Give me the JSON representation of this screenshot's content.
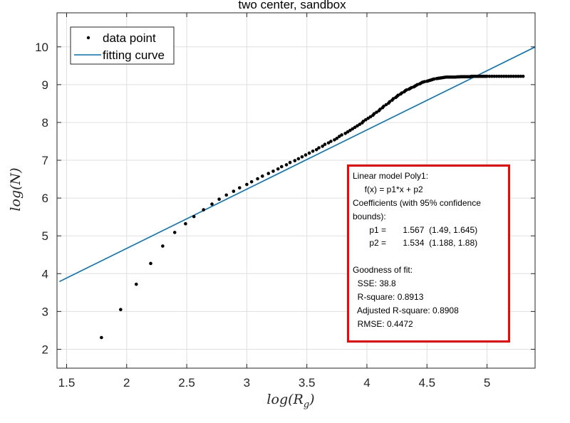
{
  "chart_data": {
    "type": "scatter",
    "title": "two center, sandbox",
    "xlabel": "log(R_g)",
    "ylabel": "log(N)",
    "xlim": [
      1.42,
      5.4
    ],
    "ylim": [
      1.5,
      10.9
    ],
    "xticks": [
      1.5,
      2,
      2.5,
      3,
      3.5,
      4,
      4.5,
      5
    ],
    "yticks": [
      2,
      3,
      4,
      5,
      6,
      7,
      8,
      9,
      10
    ],
    "grid": true,
    "legend_position": "top-left",
    "series": [
      {
        "name": "data point",
        "kind": "scatter",
        "color": "#000000",
        "x": [
          1.79,
          1.95,
          2.08,
          2.2,
          2.3,
          2.4,
          2.49,
          2.56,
          2.64,
          2.71,
          2.77,
          2.83,
          2.89,
          2.94,
          3.0,
          3.04,
          3.09,
          3.13,
          3.18,
          3.22,
          3.26,
          3.29,
          3.33,
          3.36,
          3.4,
          3.43,
          3.46,
          3.49,
          3.52,
          3.55,
          3.58,
          3.6,
          3.63,
          3.65,
          3.68,
          3.7,
          3.73,
          3.75,
          3.77,
          3.79,
          3.82,
          3.84,
          3.86,
          3.88,
          3.9,
          3.92,
          3.94,
          3.96,
          3.97,
          3.99,
          4.01,
          4.03,
          4.05,
          4.06,
          4.08,
          4.1,
          4.11,
          4.13,
          4.14,
          4.16,
          4.18,
          4.19,
          4.21,
          4.22,
          4.24,
          4.25,
          4.26,
          4.28,
          4.29,
          4.31,
          4.32,
          4.33,
          4.35,
          4.36,
          4.37,
          4.39,
          4.4,
          4.41,
          4.42,
          4.44,
          4.45,
          4.46,
          4.47,
          4.48,
          4.5,
          4.51,
          4.52,
          4.53,
          4.54,
          4.55,
          4.56,
          4.58,
          4.59,
          4.6,
          4.61,
          4.62,
          4.63,
          4.64,
          4.65,
          4.66,
          4.67,
          4.68,
          4.69,
          4.7,
          4.71,
          4.72,
          4.73,
          4.74,
          4.75,
          4.76,
          4.77,
          4.78,
          4.79,
          4.8,
          4.81,
          4.82,
          4.83,
          4.84,
          4.85,
          4.86,
          4.87,
          4.88,
          4.89,
          4.9,
          4.91,
          4.92,
          4.93,
          4.94,
          4.95,
          4.96,
          4.97,
          4.98,
          4.99,
          5.0,
          5.02,
          5.04,
          5.06,
          5.08,
          5.1,
          5.12,
          5.14,
          5.16,
          5.18,
          5.2,
          5.22,
          5.24,
          5.26,
          5.28,
          5.3
        ],
        "y": [
          2.31,
          3.05,
          3.72,
          4.27,
          4.73,
          5.09,
          5.32,
          5.51,
          5.69,
          5.84,
          5.97,
          6.08,
          6.18,
          6.27,
          6.36,
          6.43,
          6.51,
          6.58,
          6.65,
          6.71,
          6.77,
          6.83,
          6.88,
          6.94,
          6.99,
          7.04,
          7.09,
          7.14,
          7.19,
          7.24,
          7.28,
          7.33,
          7.37,
          7.42,
          7.46,
          7.5,
          7.54,
          7.58,
          7.63,
          7.67,
          7.71,
          7.75,
          7.79,
          7.83,
          7.87,
          7.91,
          7.95,
          7.99,
          8.03,
          8.07,
          8.11,
          8.15,
          8.19,
          8.23,
          8.27,
          8.31,
          8.35,
          8.39,
          8.43,
          8.47,
          8.51,
          8.55,
          8.59,
          8.63,
          8.66,
          8.69,
          8.72,
          8.75,
          8.78,
          8.81,
          8.84,
          8.86,
          8.88,
          8.9,
          8.92,
          8.94,
          8.96,
          8.98,
          9.0,
          9.02,
          9.04,
          9.06,
          9.07,
          9.08,
          9.09,
          9.1,
          9.11,
          9.12,
          9.13,
          9.14,
          9.15,
          9.16,
          9.165,
          9.17,
          9.175,
          9.18,
          9.185,
          9.19,
          9.195,
          9.2,
          9.2,
          9.2,
          9.2,
          9.2,
          9.2,
          9.2,
          9.2,
          9.2,
          9.205,
          9.205,
          9.205,
          9.21,
          9.21,
          9.21,
          9.21,
          9.21,
          9.21,
          9.21,
          9.21,
          9.21,
          9.22,
          9.22,
          9.22,
          9.22,
          9.22,
          9.22,
          9.22,
          9.22,
          9.22,
          9.22,
          9.22,
          9.22,
          9.22,
          9.22,
          9.22,
          9.22,
          9.22,
          9.22,
          9.22,
          9.22,
          9.22,
          9.22,
          9.22,
          9.22,
          9.22,
          9.22,
          9.22,
          9.22,
          9.22
        ]
      },
      {
        "name": "fitting curve",
        "kind": "line",
        "color": "#0072bd",
        "p1": 1.567,
        "p2": 1.534,
        "x_range": [
          1.44,
          5.4
        ]
      }
    ],
    "annotation": {
      "lines": [
        "Linear model Poly1:",
        "     f(x) = p1*x + p2",
        "Coefficients (with 95% confidence",
        "bounds):",
        "       p1 =       1.567  (1.49, 1.645)",
        "       p2 =       1.534  (1.188, 1.88)",
        "",
        "Goodness of fit:",
        "  SSE: 38.8",
        "  R-square: 0.8913",
        "  Adjusted R-square: 0.8908",
        "  RMSE: 0.4472"
      ],
      "border_color": "#ff0000"
    }
  }
}
